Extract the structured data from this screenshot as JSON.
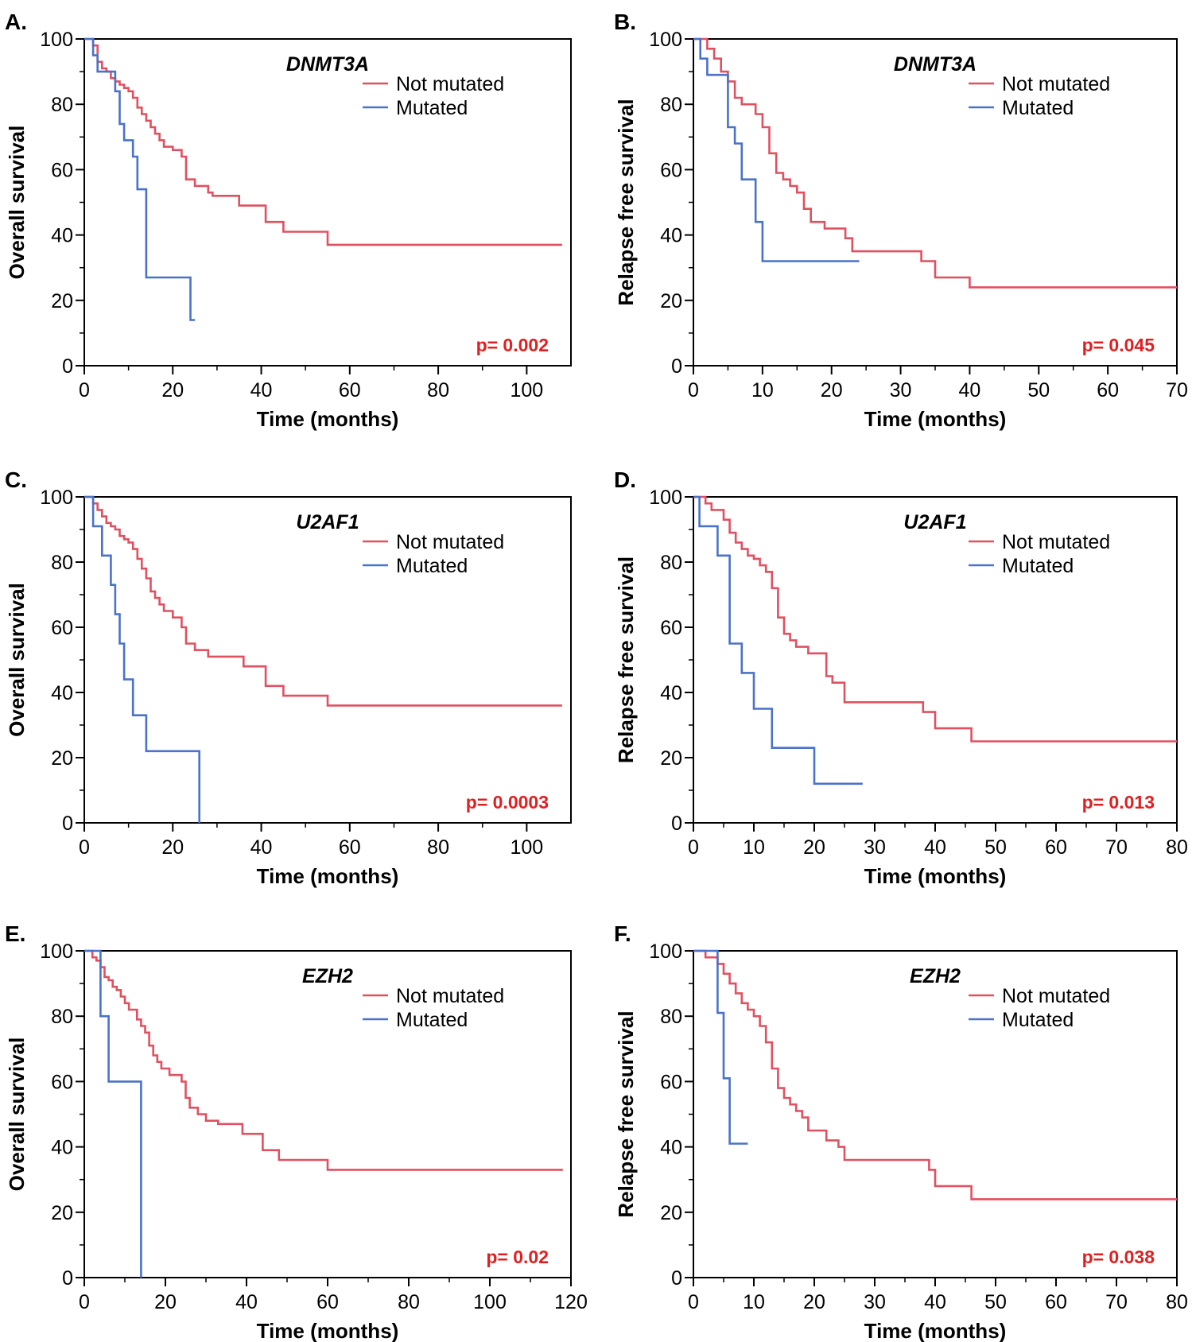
{
  "colors": {
    "not_mutated": "#e05060",
    "mutated": "#4a72c8",
    "pvalue": "#e02020",
    "axis": "#000000"
  },
  "chart_data": [
    {
      "type": "line",
      "step": true,
      "panel": "A.",
      "gene": "DNMT3A",
      "xlabel": "Time (months)",
      "ylabel": "Overall survival",
      "xlim": [
        0,
        110
      ],
      "ylim": [
        0,
        100
      ],
      "xticks": [
        0,
        20,
        40,
        60,
        80,
        100
      ],
      "yticks": [
        0,
        20,
        40,
        60,
        80,
        100
      ],
      "legend": "top-right",
      "pvalue": "p= 0.002",
      "series": [
        {
          "name": "Not mutated",
          "x": [
            0,
            2,
            3,
            4,
            5,
            6,
            7,
            8,
            9,
            10,
            11,
            12,
            13,
            14,
            15,
            16,
            17,
            18,
            20,
            22,
            23,
            25,
            28,
            29,
            35,
            41,
            45,
            55,
            108
          ],
          "y": [
            100,
            98,
            93,
            91,
            90,
            88,
            87,
            86,
            85,
            84,
            82,
            79,
            77,
            75,
            73,
            71,
            69,
            67,
            66,
            64,
            57,
            55,
            53,
            52,
            49,
            44,
            41,
            37,
            37
          ]
        },
        {
          "name": "Mutated",
          "x": [
            0,
            2,
            3,
            7,
            8,
            9,
            11,
            12,
            14,
            24,
            25
          ],
          "y": [
            100,
            95,
            90,
            84,
            74,
            69,
            64,
            54,
            27,
            14,
            14
          ]
        }
      ]
    },
    {
      "type": "line",
      "step": true,
      "panel": "B.",
      "gene": "DNMT3A",
      "xlabel": "Time (months)",
      "ylabel": "Relapse free survival",
      "xlim": [
        0,
        70
      ],
      "ylim": [
        0,
        100
      ],
      "xticks": [
        0,
        10,
        20,
        30,
        40,
        50,
        60,
        70
      ],
      "yticks": [
        0,
        20,
        40,
        60,
        80,
        100
      ],
      "legend": "top-right",
      "pvalue": "p= 0.045",
      "series": [
        {
          "name": "Not mutated",
          "x": [
            0,
            2,
            3,
            4,
            5,
            6,
            7,
            9,
            10,
            11,
            12,
            13,
            14,
            15,
            16,
            17,
            19,
            22,
            23,
            33,
            35,
            40,
            70
          ],
          "y": [
            100,
            97,
            94,
            90,
            87,
            82,
            80,
            77,
            73,
            65,
            59,
            57,
            55,
            53,
            48,
            44,
            42,
            39,
            35,
            32,
            27,
            24,
            24
          ]
        },
        {
          "name": "Mutated",
          "x": [
            0,
            1,
            2,
            5,
            6,
            7,
            9,
            10,
            24
          ],
          "y": [
            100,
            94,
            89,
            73,
            68,
            57,
            44,
            32,
            32
          ]
        }
      ]
    },
    {
      "type": "line",
      "step": true,
      "panel": "C.",
      "gene": "U2AF1",
      "xlabel": "Time (months)",
      "ylabel": "Overall survival",
      "xlim": [
        0,
        110
      ],
      "ylim": [
        0,
        100
      ],
      "xticks": [
        0,
        20,
        40,
        60,
        80,
        100
      ],
      "yticks": [
        0,
        20,
        40,
        60,
        80,
        100
      ],
      "legend": "top-right",
      "pvalue": "p= 0.0003",
      "series": [
        {
          "name": "Not mutated",
          "x": [
            0,
            2,
            3,
            4,
            5,
            6,
            7,
            8,
            9,
            10,
            11,
            12,
            13,
            14,
            15,
            16,
            17,
            18,
            20,
            22,
            23,
            25,
            28,
            36,
            41,
            45,
            55,
            108
          ],
          "y": [
            100,
            98,
            96,
            94,
            92,
            91,
            90,
            88,
            87,
            86,
            84,
            81,
            78,
            75,
            71,
            69,
            67,
            65,
            63,
            60,
            55,
            53,
            51,
            48,
            42,
            39,
            36,
            36
          ]
        },
        {
          "name": "Mutated",
          "x": [
            0,
            2,
            4,
            6,
            7,
            8,
            9,
            11,
            14,
            26
          ],
          "y": [
            100,
            91,
            82,
            73,
            64,
            55,
            44,
            33,
            22,
            0
          ]
        }
      ]
    },
    {
      "type": "line",
      "step": true,
      "panel": "D.",
      "gene": "U2AF1",
      "xlabel": "Time (months)",
      "ylabel": "Relapse free survival",
      "xlim": [
        0,
        80
      ],
      "ylim": [
        0,
        100
      ],
      "xticks": [
        0,
        10,
        20,
        30,
        40,
        50,
        60,
        70,
        80
      ],
      "yticks": [
        0,
        20,
        40,
        60,
        80,
        100
      ],
      "legend": "top-right",
      "pvalue": "p= 0.013",
      "series": [
        {
          "name": "Not mutated",
          "x": [
            0,
            2,
            3,
            5,
            6,
            7,
            8,
            9,
            10,
            11,
            12,
            13,
            14,
            15,
            16,
            17,
            19,
            22,
            23,
            25,
            38,
            40,
            46,
            80
          ],
          "y": [
            100,
            98,
            96,
            93,
            89,
            86,
            84,
            82,
            81,
            79,
            77,
            72,
            63,
            58,
            56,
            54,
            52,
            45,
            43,
            37,
            34,
            29,
            25,
            25
          ]
        },
        {
          "name": "Mutated",
          "x": [
            0,
            1,
            4,
            6,
            8,
            10,
            13,
            20,
            28
          ],
          "y": [
            100,
            91,
            82,
            55,
            46,
            35,
            23,
            12,
            12
          ]
        }
      ]
    },
    {
      "type": "line",
      "step": true,
      "panel": "E.",
      "gene": "EZH2",
      "xlabel": "Time (months)",
      "ylabel": "Overall survival",
      "xlim": [
        0,
        120
      ],
      "ylim": [
        0,
        100
      ],
      "xticks": [
        0,
        20,
        40,
        60,
        80,
        100,
        120
      ],
      "yticks": [
        0,
        20,
        40,
        60,
        80,
        100
      ],
      "legend": "top-right",
      "pvalue": "p= 0.02",
      "series": [
        {
          "name": "Not mutated",
          "x": [
            0,
            2,
            3,
            4,
            5,
            6,
            7,
            8,
            9,
            10,
            11,
            13,
            14,
            15,
            16,
            17,
            18,
            19,
            21,
            24,
            25,
            26,
            28,
            30,
            33,
            39,
            44,
            48,
            60,
            118
          ],
          "y": [
            100,
            98,
            97,
            95,
            92,
            91,
            89,
            88,
            86,
            84,
            82,
            79,
            77,
            75,
            71,
            68,
            66,
            64,
            62,
            60,
            55,
            52,
            50,
            48,
            47,
            44,
            39,
            36,
            33,
            33
          ]
        },
        {
          "name": "Mutated",
          "x": [
            0,
            4,
            6,
            14
          ],
          "y": [
            100,
            80,
            60,
            0
          ]
        }
      ]
    },
    {
      "type": "line",
      "step": true,
      "panel": "F.",
      "gene": "EZH2",
      "xlabel": "Time (months)",
      "ylabel": "Relapse free survival",
      "xlim": [
        0,
        80
      ],
      "ylim": [
        0,
        100
      ],
      "xticks": [
        0,
        10,
        20,
        30,
        40,
        50,
        60,
        70,
        80
      ],
      "yticks": [
        0,
        20,
        40,
        60,
        80,
        100
      ],
      "legend": "top-right",
      "pvalue": "p= 0.038",
      "series": [
        {
          "name": "Not mutated",
          "x": [
            0,
            2,
            4,
            5,
            6,
            7,
            8,
            9,
            10,
            11,
            12,
            13,
            14,
            15,
            16,
            17,
            18,
            19,
            22,
            24,
            25,
            39,
            40,
            46,
            80
          ],
          "y": [
            100,
            98,
            96,
            93,
            90,
            87,
            84,
            82,
            80,
            77,
            72,
            64,
            58,
            55,
            53,
            51,
            49,
            45,
            42,
            40,
            36,
            33,
            28,
            24,
            24
          ]
        },
        {
          "name": "Mutated",
          "x": [
            0,
            4,
            5,
            6,
            9
          ],
          "y": [
            100,
            81,
            61,
            41,
            41
          ]
        }
      ]
    }
  ]
}
